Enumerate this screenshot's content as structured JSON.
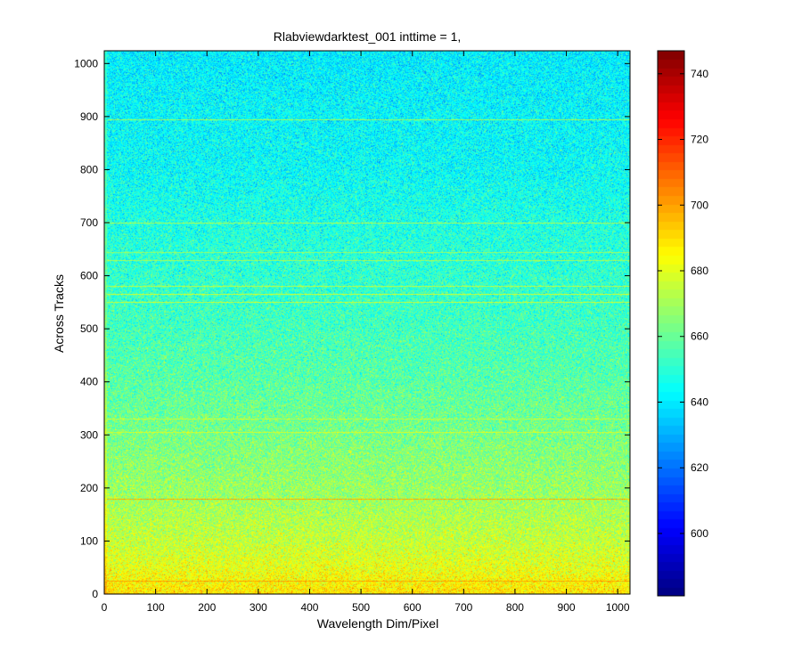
{
  "chart_data": {
    "type": "heatmap",
    "title": "Rlabviewdarktest_001 inttime = 1,",
    "xlabel": "Wavelength Dim/Pixel",
    "ylabel": "Across Tracks",
    "xlim": [
      0,
      1024
    ],
    "ylim": [
      0,
      1024
    ],
    "x_ticks": [
      0,
      100,
      200,
      300,
      400,
      500,
      600,
      700,
      800,
      900,
      1000
    ],
    "y_ticks": [
      0,
      100,
      200,
      300,
      400,
      500,
      600,
      700,
      800,
      900,
      1000
    ],
    "colormap": "jet",
    "colorbar": {
      "range": [
        581,
        747
      ],
      "ticks": [
        600,
        620,
        640,
        660,
        680,
        700,
        720,
        740
      ]
    },
    "mean_profile_by_row": [
      {
        "row": 0,
        "value": 690
      },
      {
        "row": 20,
        "value": 686
      },
      {
        "row": 50,
        "value": 681
      },
      {
        "row": 100,
        "value": 675
      },
      {
        "row": 200,
        "value": 668
      },
      {
        "row": 300,
        "value": 663
      },
      {
        "row": 400,
        "value": 658
      },
      {
        "row": 500,
        "value": 654
      },
      {
        "row": 600,
        "value": 651
      },
      {
        "row": 700,
        "value": 648
      },
      {
        "row": 800,
        "value": 644
      },
      {
        "row": 900,
        "value": 643
      },
      {
        "row": 1000,
        "value": 641
      },
      {
        "row": 1024,
        "value": 641
      }
    ],
    "bright_rows": [
      {
        "row": 25,
        "value": 700
      },
      {
        "row": 180,
        "value": 698
      },
      {
        "row": 305,
        "value": 678
      },
      {
        "row": 330,
        "value": 676
      },
      {
        "row": 550,
        "value": 676
      },
      {
        "row": 565,
        "value": 678
      },
      {
        "row": 580,
        "value": 674
      },
      {
        "row": 630,
        "value": 670
      },
      {
        "row": 645,
        "value": 668
      },
      {
        "row": 700,
        "value": 672
      },
      {
        "row": 895,
        "value": 670
      }
    ],
    "noise_amplitude": 8,
    "colors": {
      "axes": "#000000",
      "background": "#ffffff"
    }
  }
}
